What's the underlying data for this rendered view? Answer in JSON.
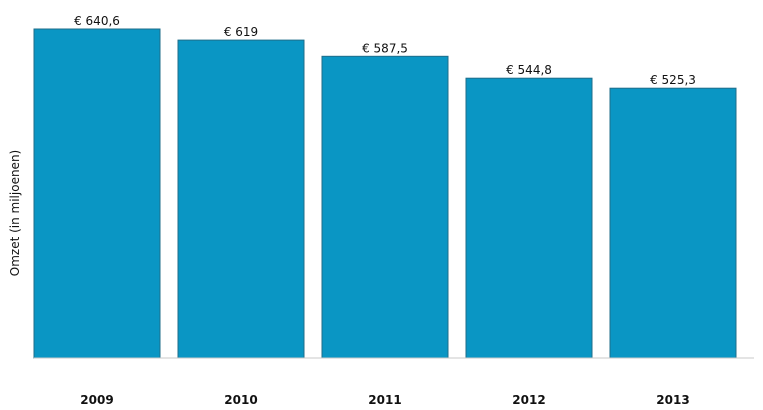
{
  "chart_data": {
    "type": "bar",
    "categories": [
      "2009",
      "2010",
      "2011",
      "2012",
      "2013"
    ],
    "values": [
      640.6,
      619,
      587.5,
      544.8,
      525.3
    ],
    "data_labels": [
      "€ 640,6",
      "€ 619",
      "€ 587,5",
      "€ 544,8",
      "€ 525,3"
    ],
    "title": "",
    "xlabel": "",
    "ylabel": "Omzet  (in miljoenen)",
    "ylim": [
      0,
      640.6
    ],
    "grid": false,
    "legend": "none",
    "bar_color": "#0a96c4"
  }
}
